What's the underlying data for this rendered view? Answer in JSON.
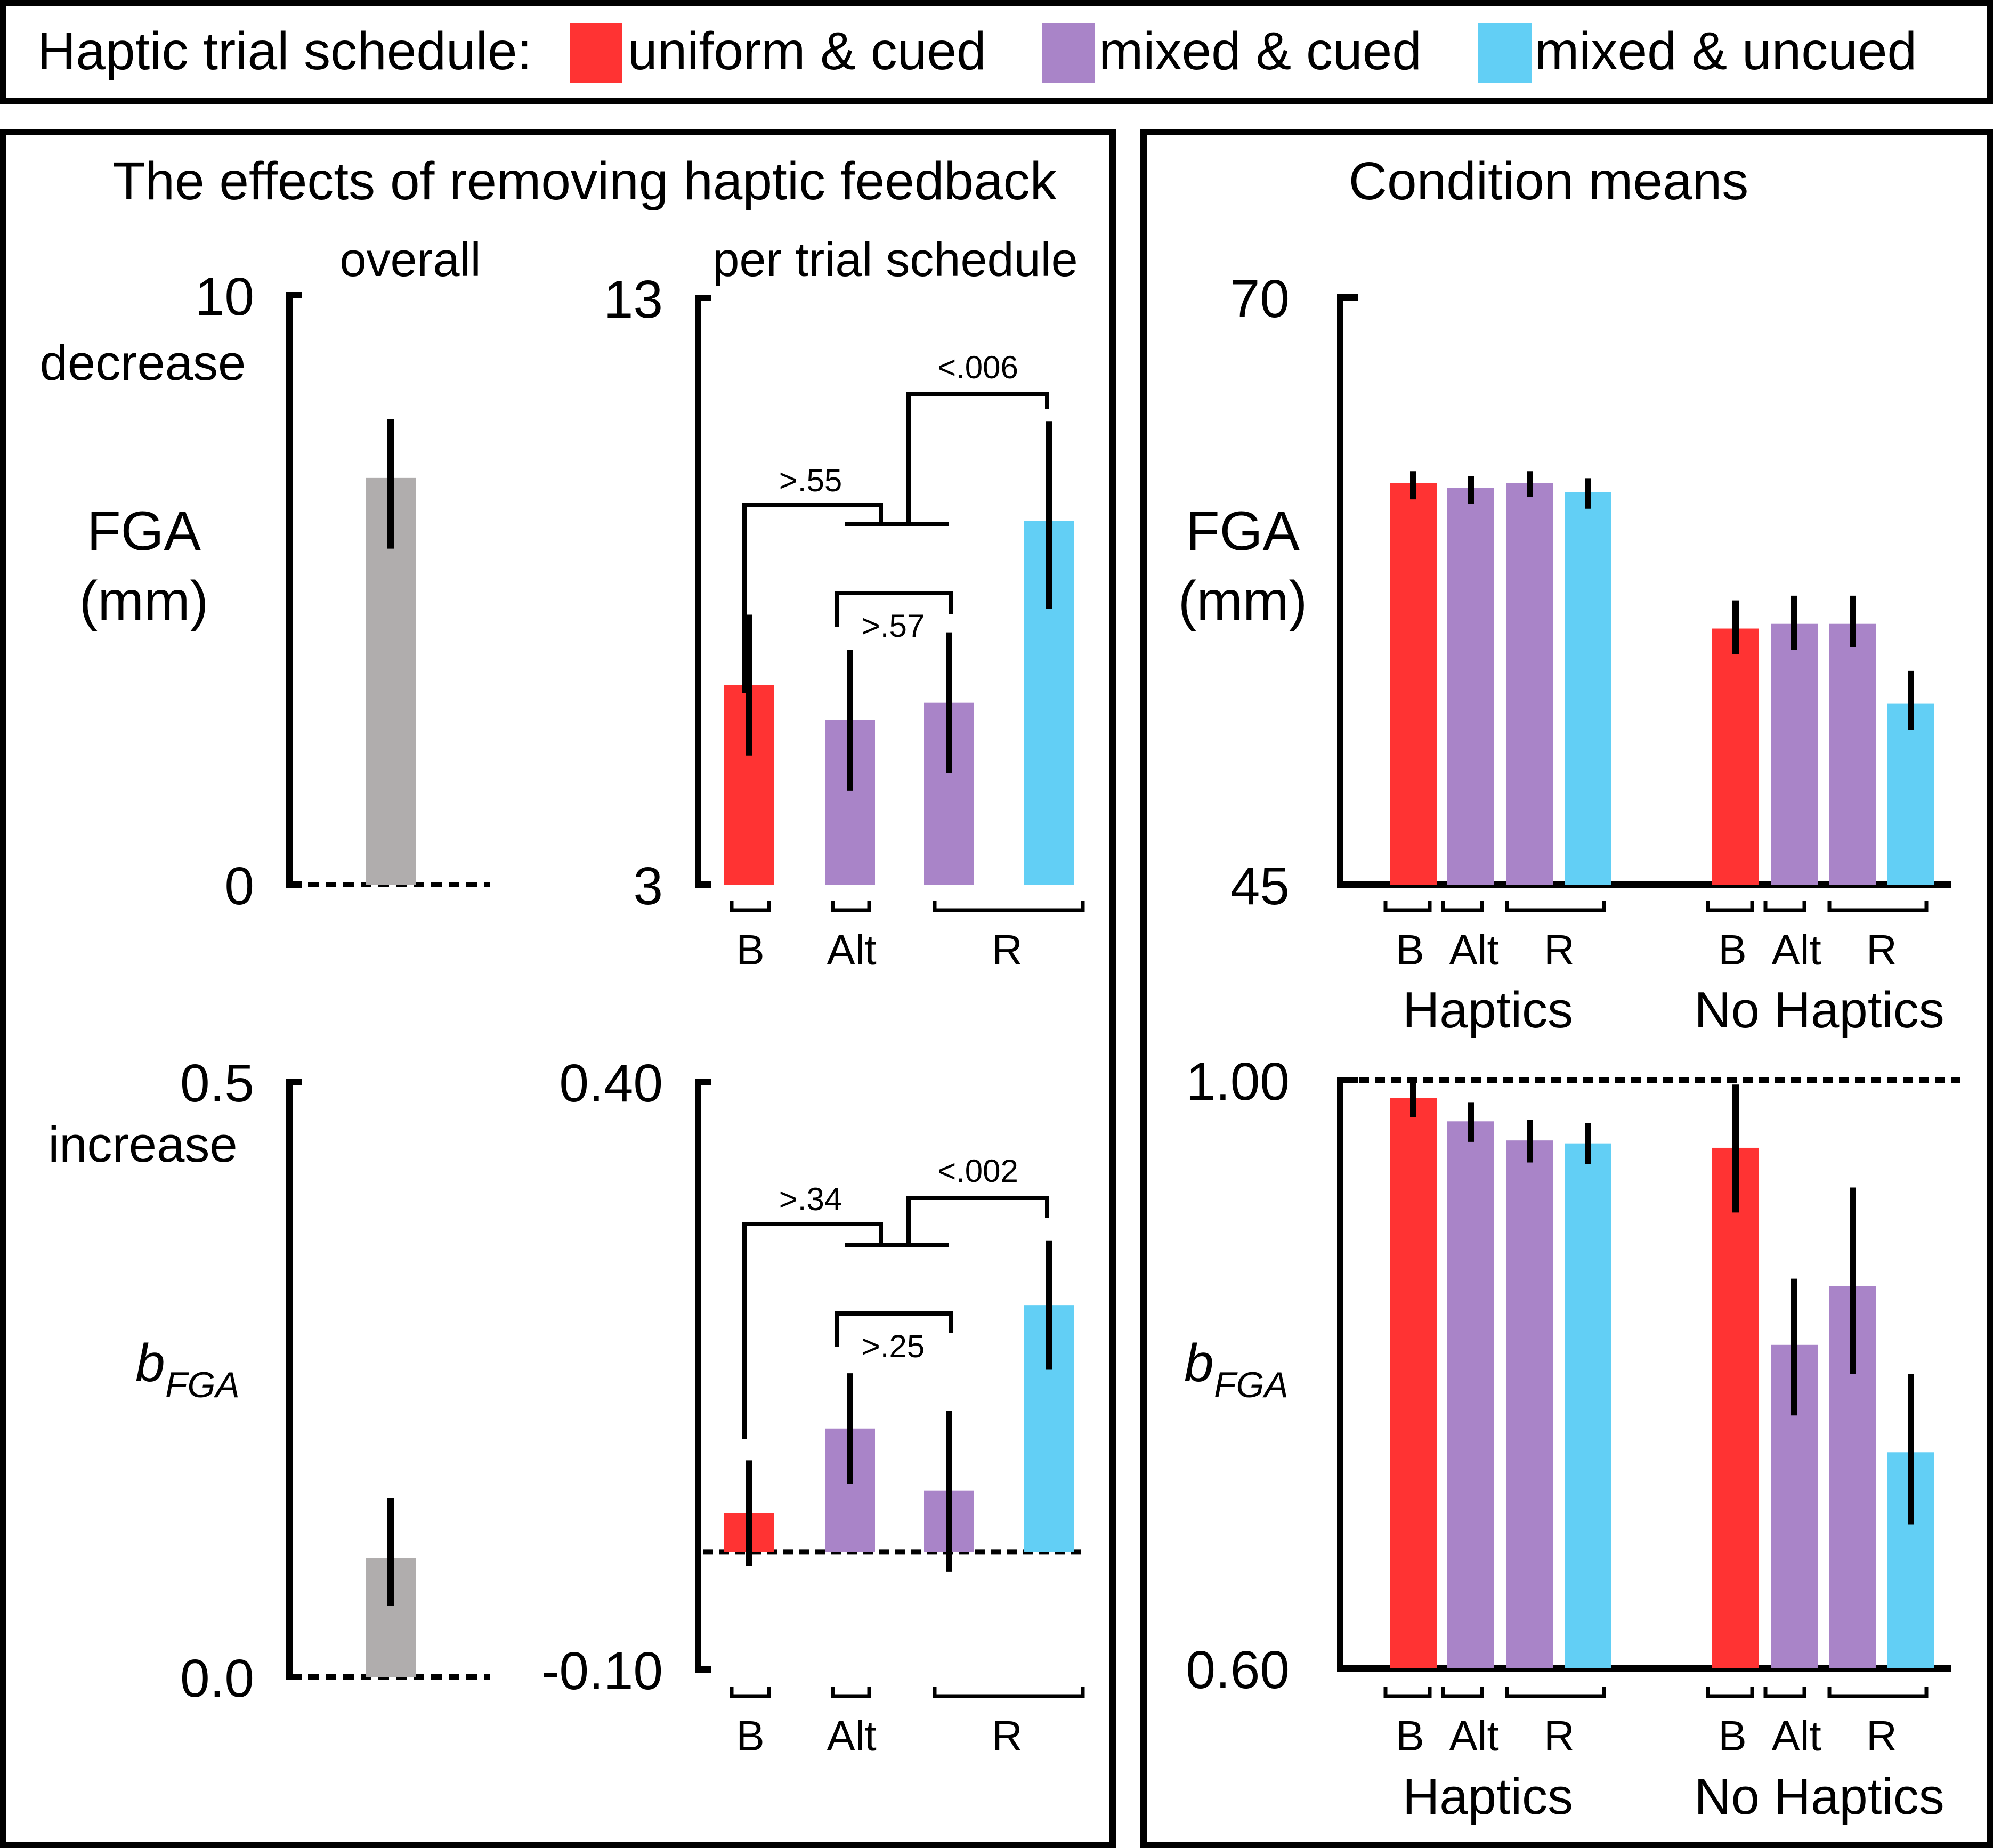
{
  "legend": {
    "title": "Haptic trial schedule:",
    "items": [
      {
        "label": "uniform & cued",
        "color": "#ff3333"
      },
      {
        "label": "mixed & cued",
        "color": "#a984c8"
      },
      {
        "label": "mixed & uncued",
        "color": "#62cff5"
      }
    ]
  },
  "colors": {
    "overall": "#b0adad",
    "uniform_cued": "#ff3333",
    "mixed_cued": "#a984c8",
    "mixed_uncued": "#62cff5"
  },
  "left_panel": {
    "title": "The effects of removing haptic feedback",
    "subtitle_overall": "overall",
    "subtitle_schedule": "per trial schedule"
  },
  "right_panel": {
    "title": "Condition means"
  },
  "text": {
    "fga_line1": "FGA",
    "fga_line2": "(mm)",
    "b_italic": "b",
    "b_sub": "FGA",
    "decrease": "decrease",
    "increase": "increase",
    "schedule_labels": [
      "B",
      "Alt",
      "R"
    ],
    "group_haptics": "Haptics",
    "group_no_haptics": "No Haptics"
  },
  "chart_data": [
    {
      "id": "fga_overall",
      "type": "bar",
      "ylim": [
        0,
        10
      ],
      "yticks": [
        "0",
        "10"
      ],
      "ylabel": "FGA (mm)",
      "categories": [
        "overall"
      ],
      "values": [
        6.9
      ],
      "err_low": [
        5.7
      ],
      "err_high": [
        7.9
      ]
    },
    {
      "id": "fga_schedule",
      "type": "bar",
      "ylim": [
        3,
        13
      ],
      "yticks": [
        "3",
        "13"
      ],
      "categories": [
        "B (uniform & cued)",
        "Alt (mixed & cued)",
        "R (mixed & cued)",
        "R (mixed & uncued)"
      ],
      "values": [
        6.4,
        5.8,
        6.1,
        9.2
      ],
      "err_low": [
        5.2,
        4.6,
        4.9,
        7.7
      ],
      "err_high": [
        7.6,
        7.0,
        7.3,
        10.9
      ],
      "annotations": [
        ">.55",
        ">.57",
        "<.006"
      ]
    },
    {
      "id": "fga_means",
      "type": "bar",
      "ylim": [
        45,
        70
      ],
      "yticks": [
        "45",
        "70"
      ],
      "ylabel": "FGA (mm)",
      "groups": [
        "Haptics",
        "No Haptics"
      ],
      "categories": [
        "B",
        "Alt",
        "R (cued)",
        "R (uncued)"
      ],
      "series": [
        {
          "name": "Haptics",
          "values": [
            62.1,
            61.9,
            62.1,
            61.7
          ],
          "err_low": [
            61.4,
            61.2,
            61.5,
            61.0
          ],
          "err_high": [
            62.6,
            62.4,
            62.6,
            62.3
          ]
        },
        {
          "name": "No Haptics",
          "values": [
            55.9,
            56.1,
            56.1,
            52.7
          ],
          "err_low": [
            54.8,
            55.0,
            55.1,
            51.6
          ],
          "err_high": [
            57.1,
            57.3,
            57.3,
            54.1
          ]
        }
      ]
    },
    {
      "id": "bfga_overall",
      "type": "bar",
      "ylim": [
        0.0,
        0.5
      ],
      "yticks": [
        "0.0",
        "0.5"
      ],
      "ylabel": "bFGA",
      "categories": [
        "overall"
      ],
      "values": [
        0.1
      ],
      "err_low": [
        0.06
      ],
      "err_high": [
        0.15
      ]
    },
    {
      "id": "bfga_schedule",
      "type": "bar",
      "ylim": [
        -0.1,
        0.4
      ],
      "yticks": [
        "-0.10",
        "0.40"
      ],
      "zero_line": 0.0,
      "categories": [
        "B (uniform & cued)",
        "Alt (mixed & cued)",
        "R (mixed & cued)",
        "R (mixed & uncued)"
      ],
      "values": [
        0.033,
        0.105,
        0.052,
        0.21
      ],
      "err_low": [
        -0.012,
        0.058,
        -0.017,
        0.155
      ],
      "err_high": [
        0.078,
        0.152,
        0.12,
        0.265
      ],
      "annotations": [
        ">.34",
        ">.25",
        "<.002"
      ]
    },
    {
      "id": "bfga_means",
      "type": "bar",
      "ylim": [
        0.6,
        1.0
      ],
      "yticks": [
        "0.60",
        "1.00"
      ],
      "ylabel": "bFGA",
      "ref_line": 1.0,
      "groups": [
        "Haptics",
        "No Haptics"
      ],
      "categories": [
        "B",
        "Alt",
        "R (cued)",
        "R (uncued)"
      ],
      "series": [
        {
          "name": "Haptics",
          "values": [
            0.988,
            0.972,
            0.959,
            0.957
          ],
          "err_low": [
            0.975,
            0.958,
            0.944,
            0.943
          ],
          "err_high": [
            0.998,
            0.985,
            0.973,
            0.971
          ]
        },
        {
          "name": "No Haptics",
          "values": [
            0.954,
            0.82,
            0.86,
            0.747
          ],
          "err_low": [
            0.91,
            0.772,
            0.8,
            0.698
          ],
          "err_high": [
            0.997,
            0.865,
            0.927,
            0.8
          ]
        }
      ]
    }
  ]
}
